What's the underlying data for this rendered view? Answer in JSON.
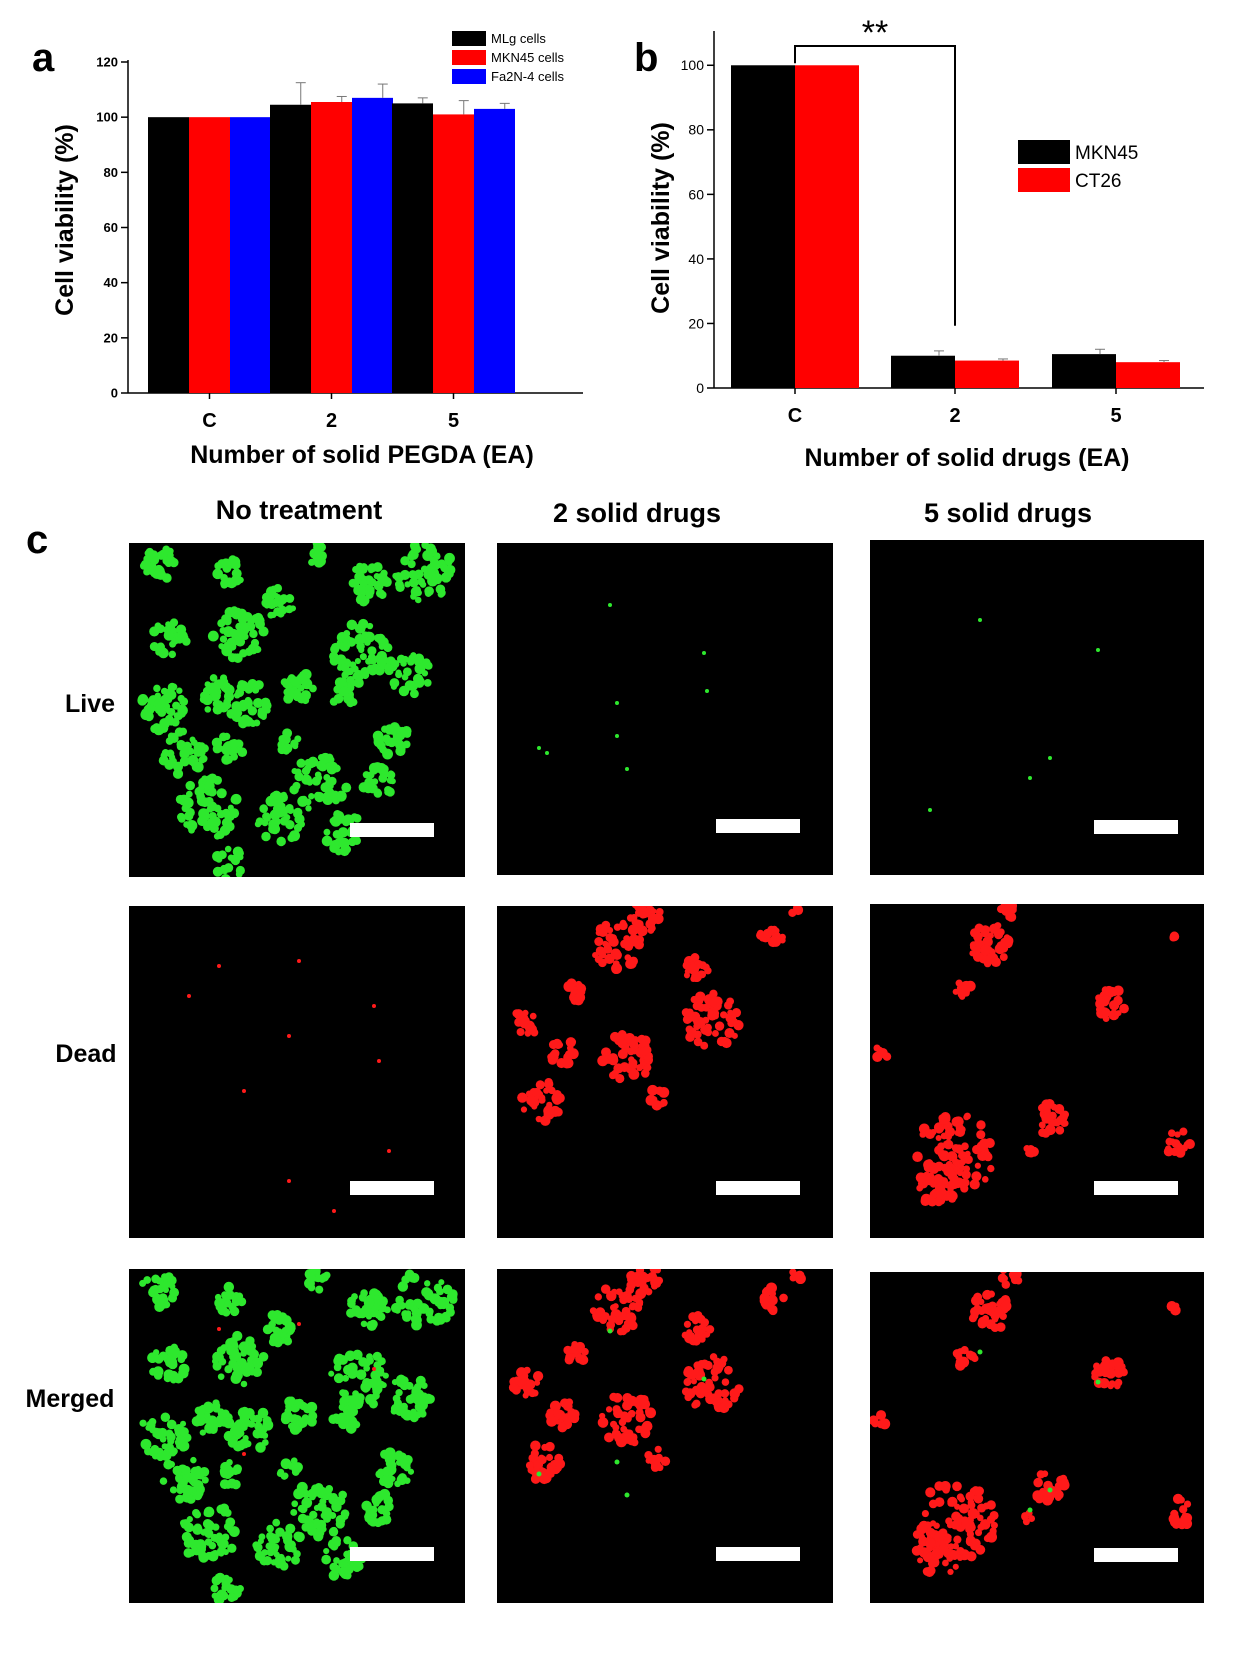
{
  "panels": {
    "a": "a",
    "b": "b",
    "c": "c"
  },
  "chart_data": [
    {
      "id": "a",
      "type": "bar",
      "title": "",
      "xlabel": "Number of solid PEGDA (EA)",
      "ylabel": "Cell viability (%)",
      "categories": [
        "C",
        "2",
        "5"
      ],
      "ylim": [
        0,
        120
      ],
      "yticks": [
        0,
        20,
        40,
        60,
        80,
        100,
        120
      ],
      "legend_position": "top-right",
      "series": [
        {
          "name": "MLg cells",
          "color": "#000000",
          "values": [
            100,
            104.5,
            105
          ],
          "errors": [
            0,
            8,
            2
          ]
        },
        {
          "name": "MKN45 cells",
          "color": "#ff0000",
          "values": [
            100,
            105.5,
            101
          ],
          "errors": [
            0,
            2,
            5
          ]
        },
        {
          "name": "Fa2N-4 cells",
          "color": "#0000ff",
          "values": [
            100,
            107,
            103
          ],
          "errors": [
            0,
            5,
            2
          ]
        }
      ]
    },
    {
      "id": "b",
      "type": "bar",
      "title": "",
      "xlabel": "Number of solid drugs (EA)",
      "ylabel": "Cell viability (%)",
      "categories": [
        "C",
        "2",
        "5"
      ],
      "ylim": [
        0,
        110
      ],
      "yticks": [
        0,
        20,
        40,
        60,
        80,
        100
      ],
      "legend_position": "right",
      "significance": {
        "label": "**",
        "from": "C",
        "to": "2"
      },
      "series": [
        {
          "name": "MKN45",
          "color": "#000000",
          "values": [
            100,
            10,
            10.5
          ],
          "errors": [
            0,
            1.5,
            1.5
          ]
        },
        {
          "name": "CT26",
          "color": "#ff0000",
          "values": [
            100,
            8.5,
            8
          ],
          "errors": [
            0,
            0.5,
            0.5
          ]
        }
      ]
    }
  ],
  "micrographs": {
    "columns": [
      "No treatment",
      "2 solid drugs",
      "5 solid drugs"
    ],
    "rows": [
      "Live",
      "Dead",
      "Merged"
    ],
    "colors": {
      "live": "#2ee82e",
      "dead": "#ff1a1a",
      "background": "#000000",
      "scale_bar": "#ffffff"
    }
  }
}
